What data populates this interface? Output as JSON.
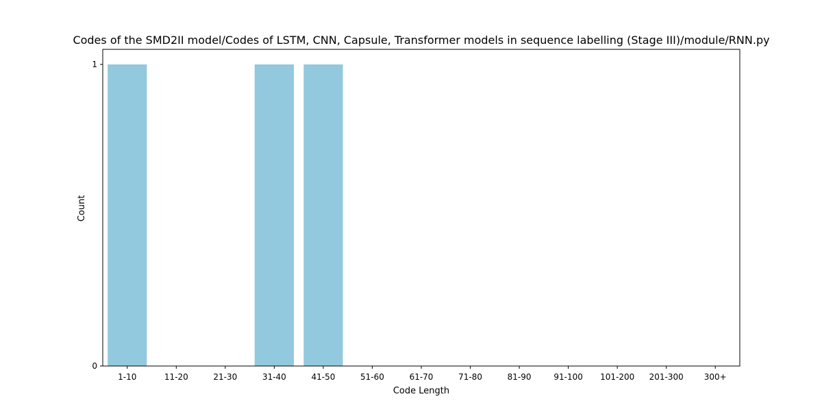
{
  "chart_data": {
    "type": "bar",
    "title": "Codes of the SMD2II model/Codes of LSTM, CNN, Capsule, Transformer models in sequence labelling (Stage III)/module/RNN.py",
    "xlabel": "Code Length",
    "ylabel": "Count",
    "categories": [
      "1-10",
      "11-20",
      "21-30",
      "31-40",
      "41-50",
      "51-60",
      "61-70",
      "71-80",
      "81-90",
      "91-100",
      "101-200",
      "201-300",
      "300+"
    ],
    "values": [
      1,
      0,
      0,
      1,
      1,
      0,
      0,
      0,
      0,
      0,
      0,
      0,
      0
    ],
    "ylim": [
      0,
      1
    ],
    "yticks": [
      0,
      1
    ],
    "bar_color": "#92c9de",
    "grid": false,
    "legend": "none"
  }
}
